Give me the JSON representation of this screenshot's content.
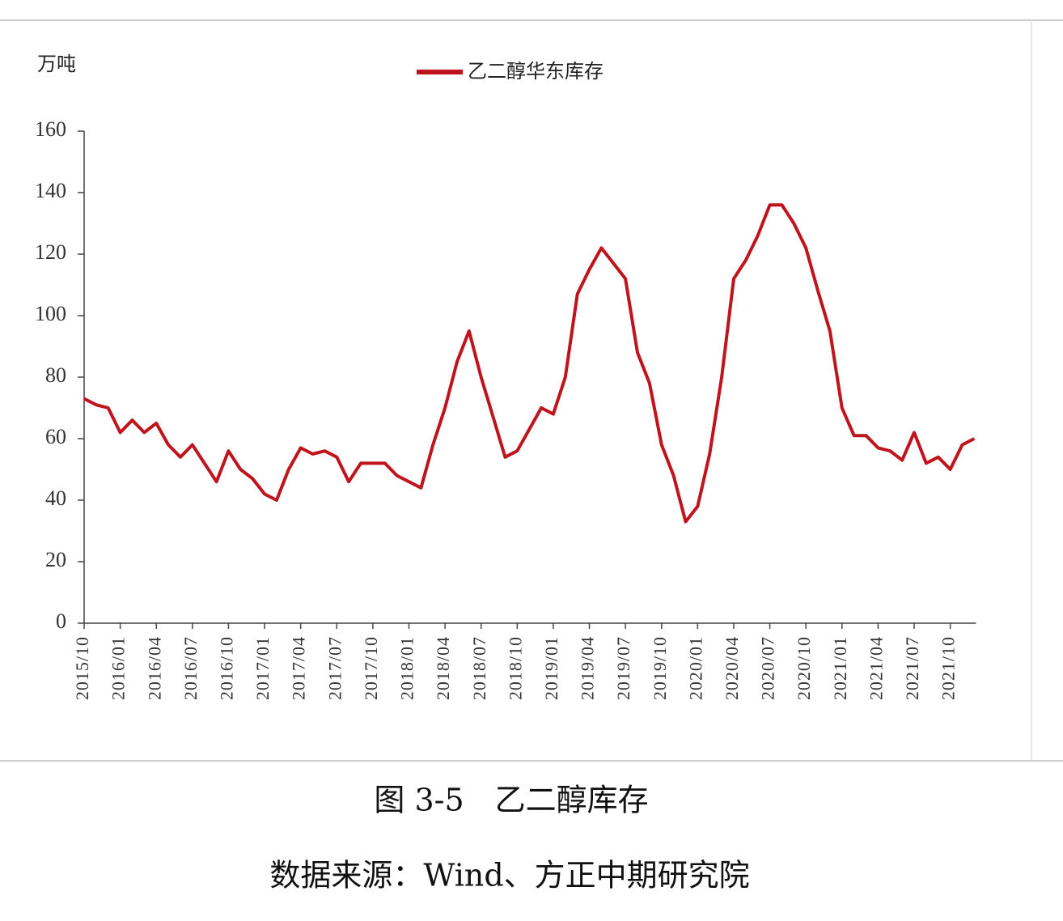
{
  "chart_data": {
    "type": "line",
    "y_label": "万吨",
    "caption": "图 3-5　乙二醇库存",
    "source": "数据来源：Wind、方正中期研究院",
    "categories": [
      "2015/10",
      null,
      null,
      "2016/01",
      null,
      null,
      "2016/04",
      null,
      null,
      "2016/07",
      null,
      null,
      "2016/10",
      null,
      null,
      "2017/01",
      null,
      null,
      "2017/04",
      null,
      null,
      "2017/07",
      null,
      null,
      "2017/10",
      null,
      null,
      "2018/01",
      null,
      null,
      "2018/04",
      null,
      null,
      "2018/07",
      null,
      null,
      "2018/10",
      null,
      null,
      "2019/01",
      null,
      null,
      "2019/04",
      null,
      null,
      "2019/07",
      null,
      null,
      "2019/10",
      null,
      null,
      "2020/01",
      null,
      null,
      "2020/04",
      null,
      null,
      "2020/07",
      null,
      null,
      "2020/10",
      null,
      null,
      "2021/01",
      null,
      null,
      "2021/04",
      null,
      null,
      "2021/07",
      null,
      null,
      "2021/10",
      null,
      null
    ],
    "series": [
      {
        "name": "乙二醇华东库存",
        "color": "#c0141c",
        "values": [
          73,
          71,
          70,
          62,
          66,
          62,
          65,
          58,
          54,
          58,
          52,
          46,
          56,
          50,
          47,
          42,
          40,
          50,
          57,
          55,
          56,
          54,
          46,
          52,
          52,
          52,
          48,
          46,
          44,
          58,
          70,
          85,
          95,
          80,
          67,
          54,
          56,
          63,
          70,
          68,
          80,
          107,
          115,
          122,
          117,
          112,
          88,
          78,
          58,
          48,
          33,
          38,
          55,
          80,
          112,
          118,
          126,
          136,
          136,
          130,
          122,
          108,
          95,
          70,
          61,
          61,
          57,
          56,
          53,
          62,
          52,
          54,
          50,
          58,
          60
        ]
      }
    ],
    "ylim": [
      0,
      160
    ],
    "yticks": [
      0,
      20,
      40,
      60,
      80,
      100,
      120,
      140,
      160
    ]
  }
}
